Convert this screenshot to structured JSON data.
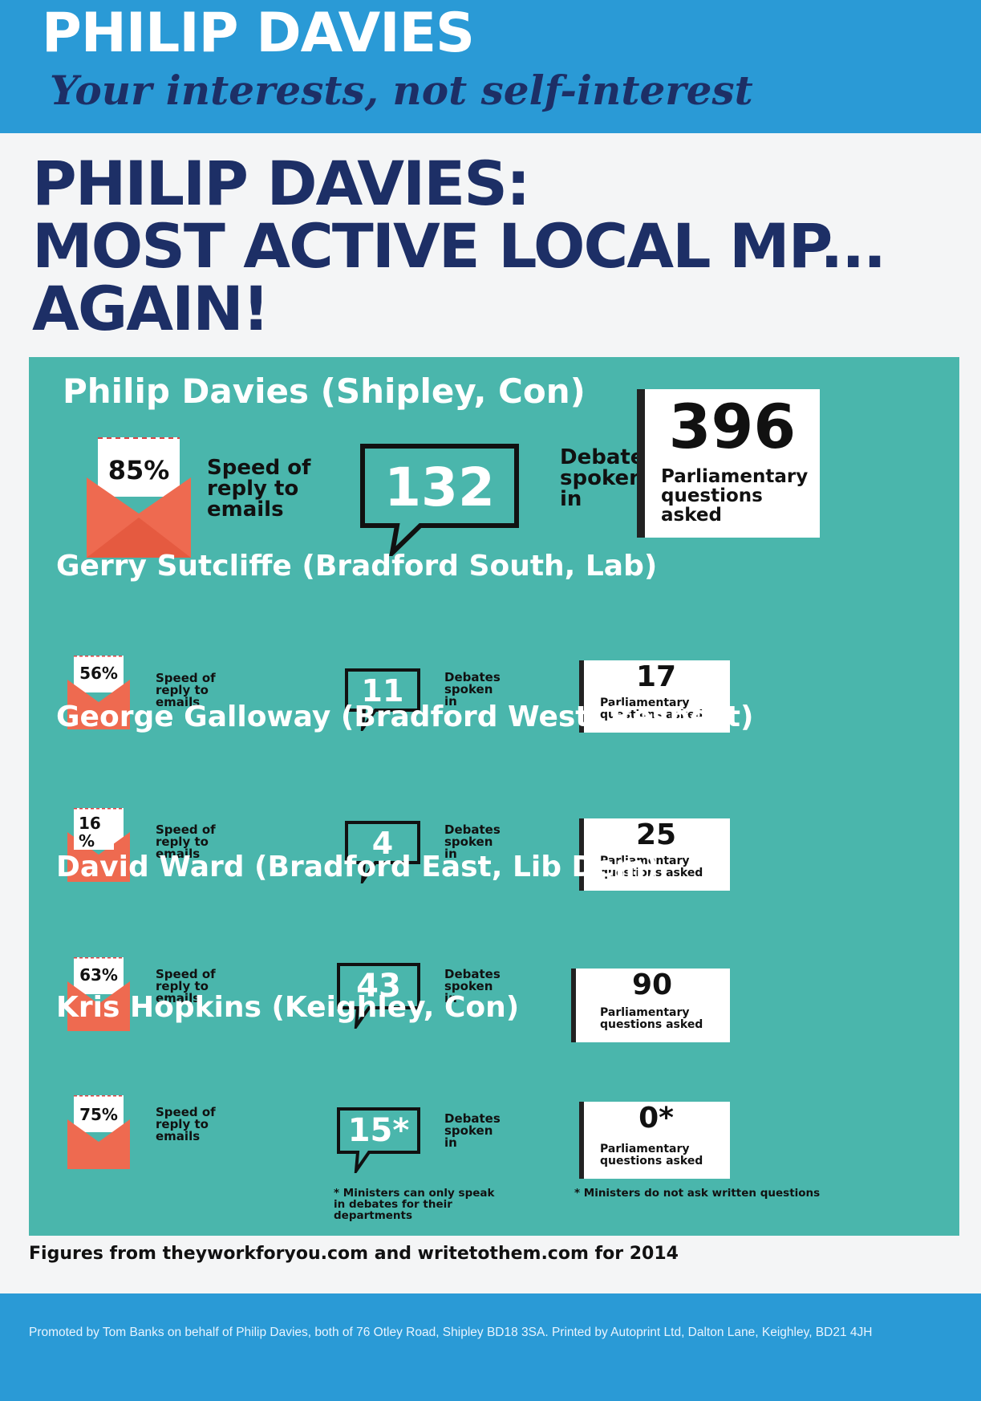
{
  "header": {
    "name": "PHILIP DAVIES",
    "slogan": "Your interests, not self-interest"
  },
  "headline": {
    "line1": "PHILIP DAVIES:",
    "line2": "MOST ACTIVE LOCAL MP...",
    "line3": "AGAIN!"
  },
  "labels": {
    "speed": "Speed of reply to emails",
    "debates": "Debates spoken in",
    "questions": "Parliamentary questions asked"
  },
  "mps": [
    {
      "name": "Philip Davies (Shipley, Con)",
      "speed": "85%",
      "debates": "132",
      "questions": "396"
    },
    {
      "name": "Gerry Sutcliffe (Bradford South, Lab)",
      "speed": "56%",
      "debates": "11",
      "questions": "17"
    },
    {
      "name": "George Galloway (Bradford West, Respect)",
      "speed": "16 %",
      "debates": "4",
      "questions": "25"
    },
    {
      "name": "David Ward (Bradford East, Lib Dem)",
      "speed": "63%",
      "debates": "43",
      "questions": "90"
    },
    {
      "name": "Kris Hopkins (Keighley, Con)",
      "speed": "75%",
      "debates": "15*",
      "questions": "0*"
    }
  ],
  "notes": {
    "ministers_debates": "* Ministers can only speak in debates for their departments",
    "ministers_questions": "* Ministers do not ask written questions"
  },
  "source": "Figures from theyworkforyou.com and writetothem.com for 2014",
  "footer": "Promoted by Tom Banks on behalf of Philip Davies, both of 76 Otley Road, Shipley BD18 3SA. Printed by Autoprint Ltd, Dalton Lane, Keighley, BD21 4JH",
  "colors": {
    "header_blue": "#2a9ad6",
    "navy": "#1d2f66",
    "teal": "#4ab6ac",
    "envelope_red": "#ee6a50"
  }
}
